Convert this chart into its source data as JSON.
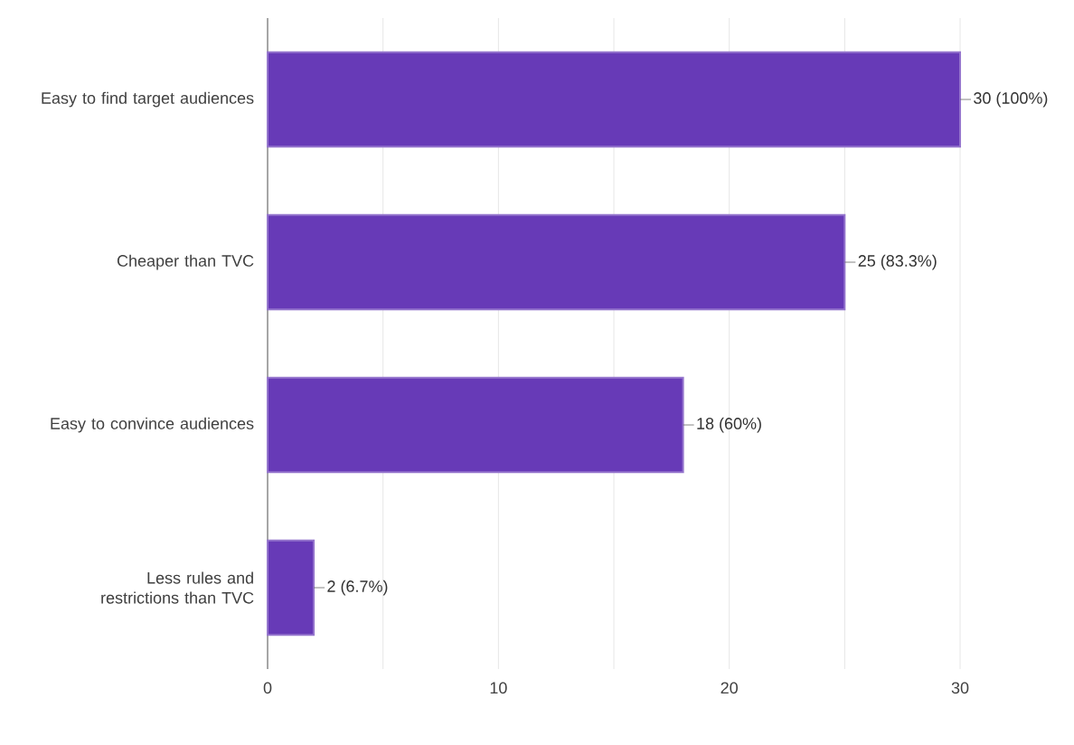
{
  "chart_data": {
    "type": "bar",
    "orientation": "horizontal",
    "categories": [
      "Easy to find target audiences",
      "Cheaper than TVC",
      "Easy to convince audiences",
      "Less rules and restrictions than TVC"
    ],
    "values": [
      30,
      25,
      18,
      2
    ],
    "value_labels": [
      "30 (100%)",
      "25 (83.3%)",
      "18 (60%)",
      "2 (6.7%)"
    ],
    "color": "#673ab7",
    "xlim": [
      0,
      30
    ],
    "xticks": [
      0,
      {
        "value": 5,
        "label": null
      },
      10,
      {
        "value": 15,
        "label": null
      },
      20,
      {
        "value": 25,
        "label": null
      },
      30
    ],
    "grid": "x"
  }
}
